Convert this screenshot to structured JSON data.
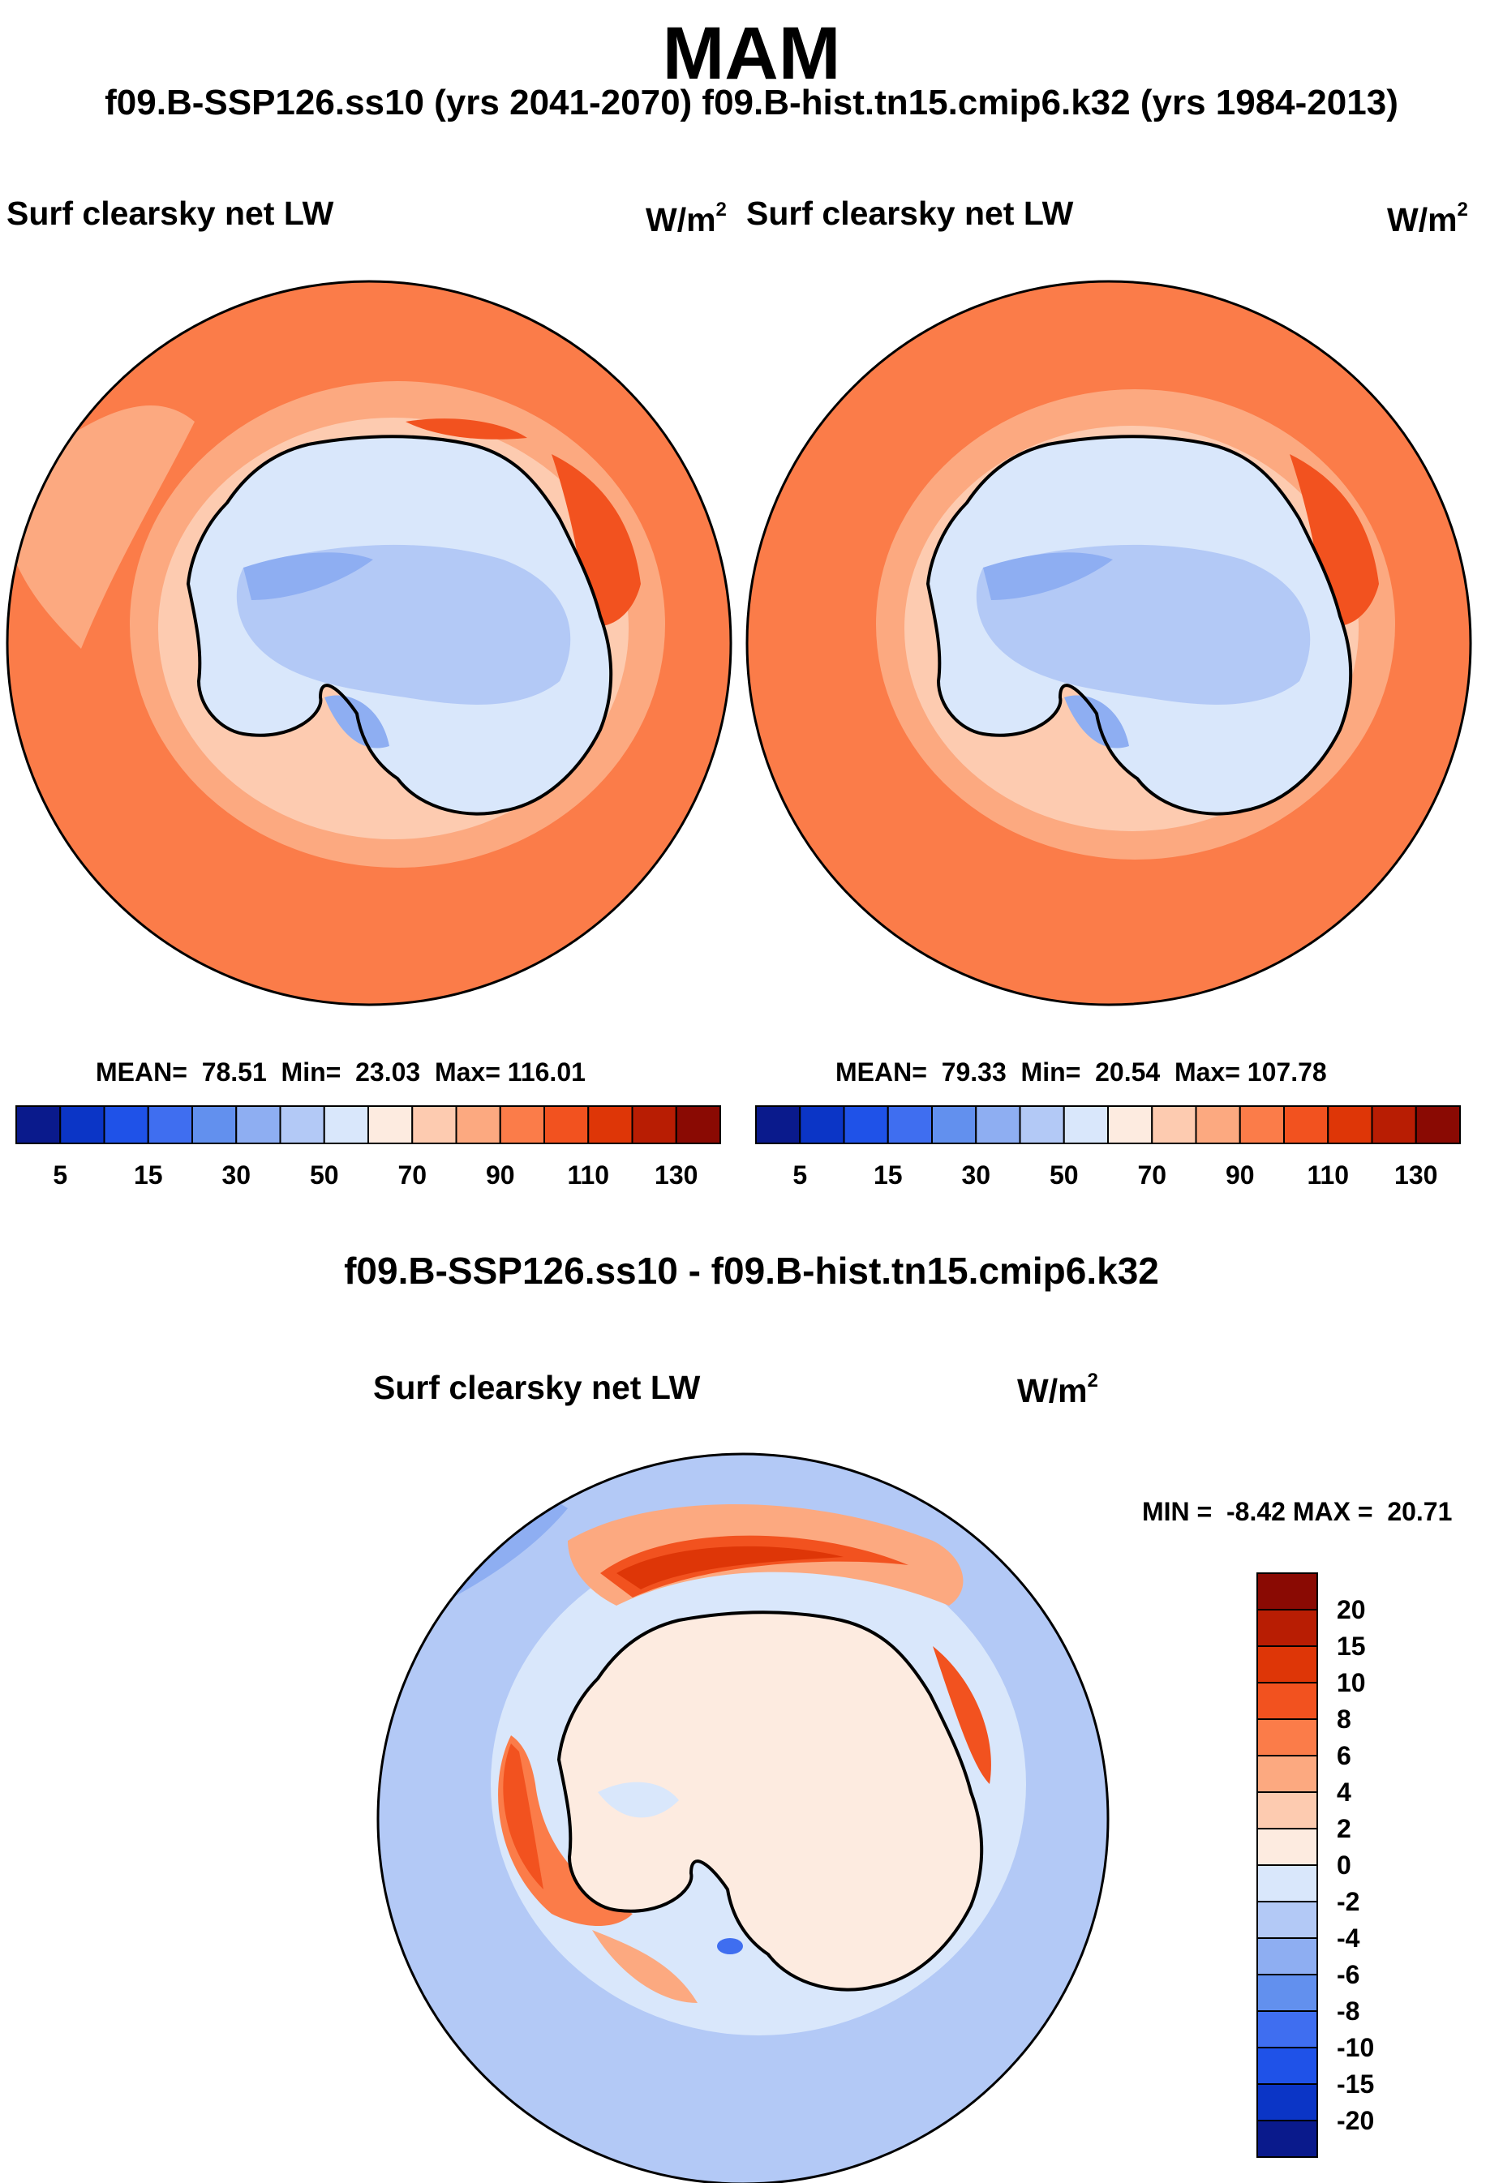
{
  "season": "MAM",
  "header": "f09.B-SSP126.ss10 (yrs 2041-2070)  f09.B-hist.tn15.cmip6.k32 (yrs 1984-2013)",
  "difference_title": "f09.B-SSP126.ss10 - f09.B-hist.tn15.cmip6.k32",
  "chart_data": [
    {
      "type": "heatmap",
      "projection": "south-polar-stereographic",
      "title": "Surf clearsky net LW",
      "units": "W/m",
      "units_exp": "2",
      "stats": {
        "mean_label": "MEAN=",
        "mean": "78.51",
        "min_label": "Min=",
        "min": "23.03",
        "max_label": "Max=",
        "max": "116.01"
      },
      "colorbar": {
        "levels": [
          5,
          10,
          15,
          20,
          30,
          40,
          50,
          60,
          70,
          80,
          90,
          100,
          110,
          120,
          130
        ],
        "tick_labels": [
          "5",
          "15",
          "30",
          "50",
          "70",
          "90",
          "110",
          "130"
        ],
        "colors": [
          "#0a1a8c",
          "#0b35c6",
          "#1f52e8",
          "#3f6ef0",
          "#6290ee",
          "#8eaef2",
          "#b3c9f6",
          "#d9e7fb",
          "#fdebe0",
          "#fdcbb0",
          "#fca980",
          "#fb7c49",
          "#f2521f",
          "#de3607",
          "#b81d03",
          "#8a0a03"
        ]
      }
    },
    {
      "type": "heatmap",
      "projection": "south-polar-stereographic",
      "title": "Surf clearsky net LW",
      "units": "W/m",
      "units_exp": "2",
      "stats": {
        "mean_label": "MEAN=",
        "mean": "79.33",
        "min_label": "Min=",
        "min": "20.54",
        "max_label": "Max=",
        "max": "107.78"
      },
      "colorbar": {
        "levels": [
          5,
          10,
          15,
          20,
          30,
          40,
          50,
          60,
          70,
          80,
          90,
          100,
          110,
          120,
          130
        ],
        "tick_labels": [
          "5",
          "15",
          "30",
          "50",
          "70",
          "90",
          "110",
          "130"
        ],
        "colors": [
          "#0a1a8c",
          "#0b35c6",
          "#1f52e8",
          "#3f6ef0",
          "#6290ee",
          "#8eaef2",
          "#b3c9f6",
          "#d9e7fb",
          "#fdebe0",
          "#fdcbb0",
          "#fca980",
          "#fb7c49",
          "#f2521f",
          "#de3607",
          "#b81d03",
          "#8a0a03"
        ]
      }
    },
    {
      "type": "heatmap",
      "projection": "south-polar-stereographic",
      "title": "Surf clearsky net LW",
      "units": "W/m",
      "units_exp": "2",
      "stats": {
        "min_label": "MIN =",
        "min": "-8.42",
        "max_label": "MAX =",
        "max": "20.71"
      },
      "colorbar": {
        "levels": [
          -20,
          -15,
          -10,
          -8,
          -6,
          -4,
          -2,
          0,
          2,
          4,
          6,
          8,
          10,
          15,
          20
        ],
        "tick_labels": [
          "20",
          "15",
          "10",
          "8",
          "6",
          "4",
          "2",
          "0",
          "-2",
          "-4",
          "-6",
          "-8",
          "-10",
          "-15",
          "-20"
        ],
        "colors": [
          "#8a0a03",
          "#b81d03",
          "#de3607",
          "#f2521f",
          "#fb7c49",
          "#fca980",
          "#fdcbb0",
          "#fdebe0",
          "#d9e7fb",
          "#b3c9f6",
          "#8eaef2",
          "#6290ee",
          "#3f6ef0",
          "#1f52e8",
          "#0b35c6",
          "#0a1a8c"
        ]
      }
    }
  ]
}
